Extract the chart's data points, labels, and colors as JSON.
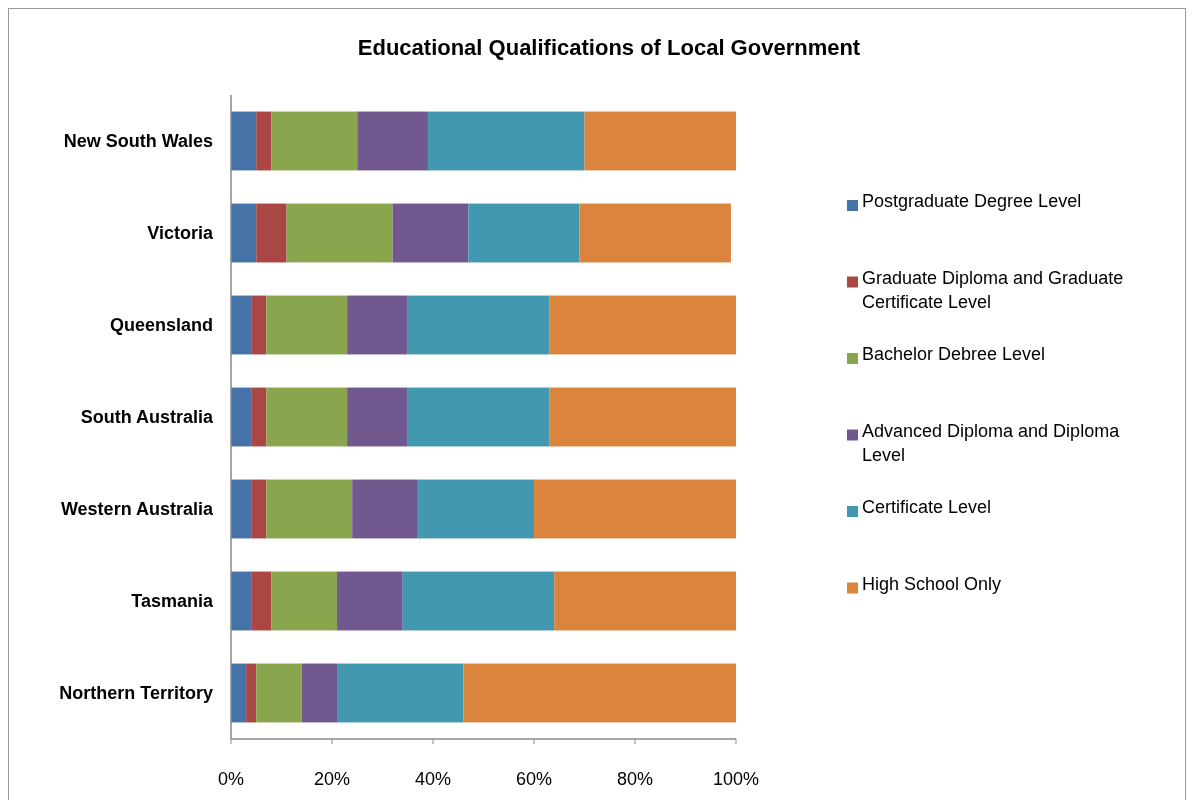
{
  "chart_data": {
    "type": "bar",
    "orientation": "horizontal",
    "stacked": true,
    "title": "Educational Qualifications of Local Government",
    "categories": [
      "New South Wales",
      "Victoria",
      "Queensland",
      "South Australia",
      "Western Australia",
      "Tasmania",
      "Northern Territory"
    ],
    "series": [
      {
        "name": "Postgraduate Degree Level",
        "color": "#4572a7",
        "values": [
          5,
          5,
          4,
          4,
          4,
          4,
          3
        ]
      },
      {
        "name": "Graduate Diploma and Graduate Certificate Level",
        "color": "#aa4643",
        "values": [
          3,
          6,
          3,
          3,
          3,
          4,
          2
        ]
      },
      {
        "name": "Bachelor Debree Level",
        "color": "#89a54e",
        "values": [
          17,
          21,
          16,
          16,
          17,
          13,
          9
        ]
      },
      {
        "name": "Advanced Diploma and Diploma Level",
        "color": "#71588f",
        "values": [
          14,
          15,
          12,
          12,
          13,
          13,
          7
        ]
      },
      {
        "name": "Certificate Level",
        "color": "#4198af",
        "values": [
          31,
          22,
          28,
          28,
          23,
          30,
          25
        ]
      },
      {
        "name": "High School Only",
        "color": "#db843d",
        "values": [
          30,
          30,
          37,
          37,
          40,
          36,
          54
        ]
      }
    ],
    "xlim": [
      0,
      100
    ],
    "xticks": [
      {
        "value": 0,
        "label": "0%"
      },
      {
        "value": 20,
        "label": "20%"
      },
      {
        "value": 40,
        "label": "40%"
      },
      {
        "value": 60,
        "label": "60%"
      },
      {
        "value": 80,
        "label": "80%"
      },
      {
        "value": 100,
        "label": "100%"
      }
    ],
    "legend": "right"
  }
}
